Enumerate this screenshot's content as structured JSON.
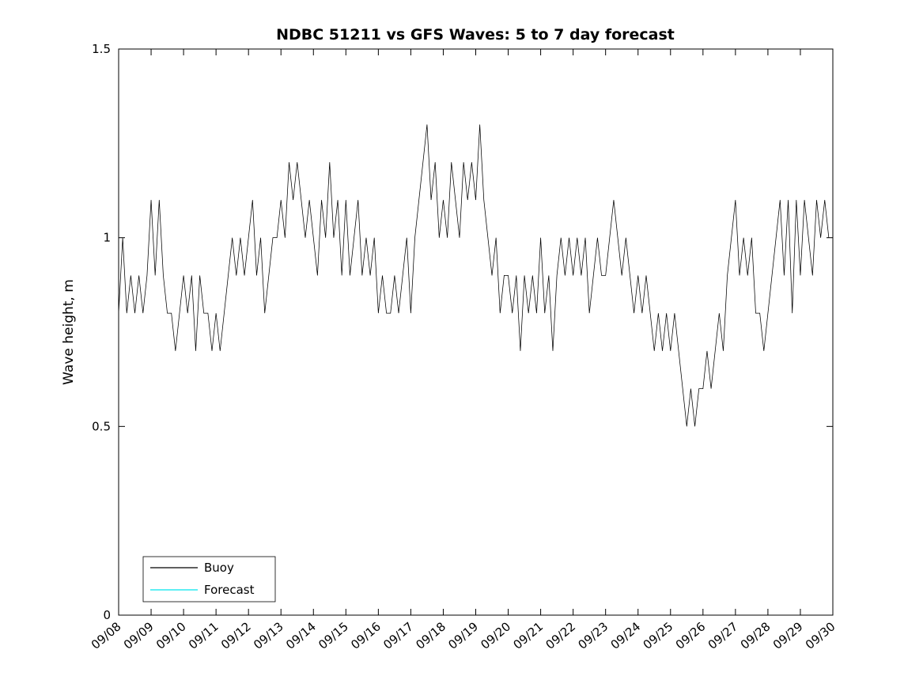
{
  "title": "NDBC 51211 vs GFS Waves: 5 to 7 day forecast",
  "ylabel": "Wave height, m",
  "legend": [
    {
      "label": "Buoy",
      "color": "#000000"
    },
    {
      "label": "Forecast",
      "color": "#00e5ee"
    }
  ],
  "chart_data": {
    "type": "line",
    "title": "NDBC 51211 vs GFS Waves: 5 to 7 day forecast",
    "xlabel": "",
    "ylabel": "Wave height, m",
    "ylim": [
      0,
      1.5
    ],
    "ytick_values": [
      0,
      0.5,
      1,
      1.5
    ],
    "ytick_labels": [
      "0",
      "0.5",
      "1",
      "1.5"
    ],
    "x_tick_labels": [
      "09/08",
      "09/09",
      "09/10",
      "09/11",
      "09/12",
      "09/13",
      "09/14",
      "09/15",
      "09/16",
      "09/17",
      "09/18",
      "09/19",
      "09/20",
      "09/21",
      "09/22",
      "09/23",
      "09/24",
      "09/25",
      "09/26",
      "09/27",
      "09/28",
      "09/29",
      "09/30"
    ],
    "x_range_days": [
      0,
      22
    ],
    "grid": false,
    "legend_position": "bottom-left-inside",
    "series": [
      {
        "name": "Buoy",
        "color": "#000000",
        "x_start_day": 0,
        "dt_days": 0.125,
        "values": [
          0.8,
          1.0,
          0.8,
          0.9,
          0.8,
          0.9,
          0.8,
          0.9,
          1.1,
          0.9,
          1.1,
          0.9,
          0.8,
          0.8,
          0.7,
          0.8,
          0.9,
          0.8,
          0.9,
          0.7,
          0.9,
          0.8,
          0.8,
          0.7,
          0.8,
          0.7,
          0.8,
          0.9,
          1.0,
          0.9,
          1.0,
          0.9,
          1.0,
          1.1,
          0.9,
          1.0,
          0.8,
          0.9,
          1.0,
          1.0,
          1.1,
          1.0,
          1.2,
          1.1,
          1.2,
          1.1,
          1.0,
          1.1,
          1.0,
          0.9,
          1.1,
          1.0,
          1.2,
          1.0,
          1.1,
          0.9,
          1.1,
          0.9,
          1.0,
          1.1,
          0.9,
          1.0,
          0.9,
          1.0,
          0.8,
          0.9,
          0.8,
          0.8,
          0.9,
          0.8,
          0.9,
          1.0,
          0.8,
          1.0,
          1.1,
          1.2,
          1.3,
          1.1,
          1.2,
          1.0,
          1.1,
          1.0,
          1.2,
          1.1,
          1.0,
          1.2,
          1.1,
          1.2,
          1.1,
          1.3,
          1.1,
          1.0,
          0.9,
          1.0,
          0.8,
          0.9,
          0.9,
          0.8,
          0.9,
          0.7,
          0.9,
          0.8,
          0.9,
          0.8,
          1.0,
          0.8,
          0.9,
          0.7,
          0.9,
          1.0,
          0.9,
          1.0,
          0.9,
          1.0,
          0.9,
          1.0,
          0.8,
          0.9,
          1.0,
          0.9,
          0.9,
          1.0,
          1.1,
          1.0,
          0.9,
          1.0,
          0.9,
          0.8,
          0.9,
          0.8,
          0.9,
          0.8,
          0.7,
          0.8,
          0.7,
          0.8,
          0.7,
          0.8,
          0.7,
          0.6,
          0.5,
          0.6,
          0.5,
          0.6,
          0.6,
          0.7,
          0.6,
          0.7,
          0.8,
          0.7,
          0.9,
          1.0,
          1.1,
          0.9,
          1.0,
          0.9,
          1.0,
          0.8,
          0.8,
          0.7,
          0.8,
          0.9,
          1.0,
          1.1,
          0.9,
          1.1,
          0.8,
          1.1,
          0.9,
          1.1,
          1.0,
          0.9,
          1.1,
          1.0,
          1.1,
          1.0
        ]
      },
      {
        "name": "Forecast",
        "color": "#00e5ee",
        "x_start_day": 0,
        "dt_days": 0.125,
        "values": []
      }
    ]
  }
}
